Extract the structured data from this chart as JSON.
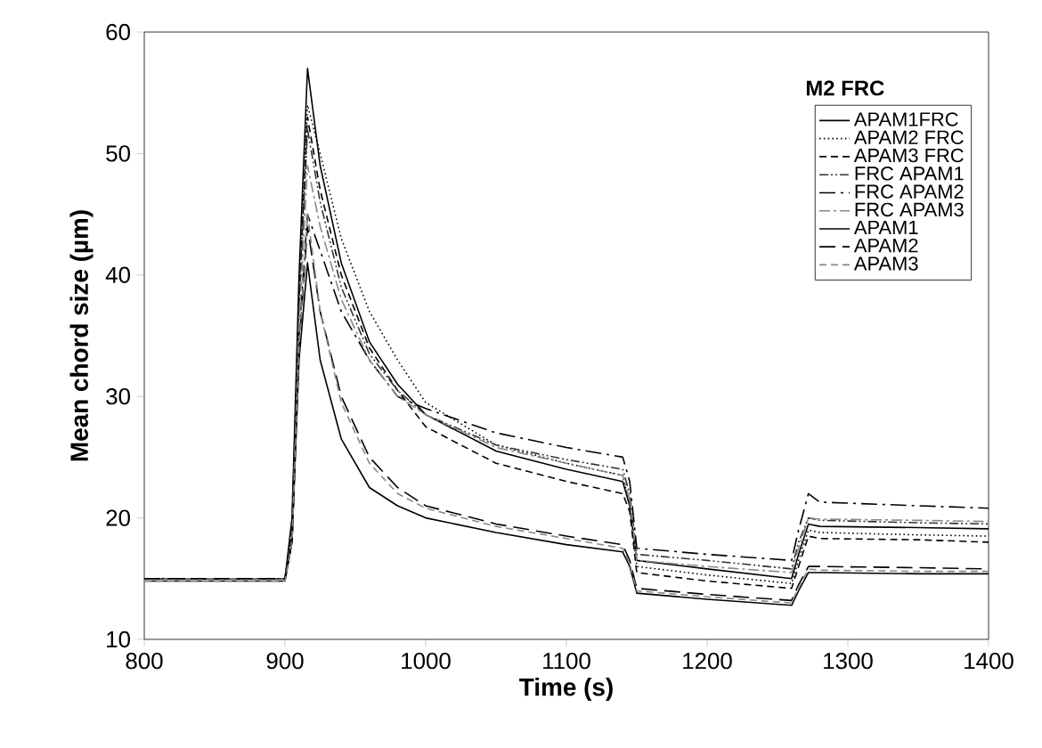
{
  "chart_data": {
    "type": "line",
    "legend_title": "M2 FRC",
    "xlabel": "Time (s)",
    "ylabel": "Mean chord size (µm)",
    "xlim": [
      800,
      1400
    ],
    "xticks": [
      800,
      900,
      1000,
      1100,
      1200,
      1300,
      1400
    ],
    "ylim": [
      10,
      60
    ],
    "yticks": [
      10,
      20,
      30,
      40,
      50,
      60
    ],
    "grid": false,
    "legend": "top right",
    "marker": "none",
    "x": [
      800,
      900,
      905,
      910,
      916,
      925,
      940,
      960,
      980,
      1000,
      1050,
      1100,
      1140,
      1145,
      1150,
      1200,
      1260,
      1265,
      1272,
      1280,
      1350,
      1400
    ],
    "series": [
      {
        "name": "APAM1FRC",
        "color": "#000000",
        "line_style": "solid",
        "values": [
          15,
          15,
          20,
          40,
          57,
          49,
          41,
          34.5,
          31,
          28.5,
          25.5,
          24,
          23,
          21,
          16.5,
          15.8,
          15,
          17,
          19.5,
          19.3,
          19.2,
          19.1
        ]
      },
      {
        "name": "APAM2 FRC",
        "color": "#000000",
        "line_style": "dotted",
        "values": [
          15,
          15,
          19,
          38,
          54,
          50,
          43,
          37,
          33,
          29.5,
          26,
          24.5,
          23.5,
          21,
          16,
          15.3,
          14.6,
          16.5,
          19,
          18.8,
          18.6,
          18.5
        ]
      },
      {
        "name": "APAM3 FRC",
        "color": "#000000",
        "line_style": "dashed",
        "values": [
          15,
          15,
          19,
          38,
          53,
          47,
          40,
          34,
          30.5,
          27.5,
          24.5,
          23,
          22,
          20.5,
          15.5,
          14.8,
          14.2,
          16,
          18.5,
          18.3,
          18.2,
          18
        ]
      },
      {
        "name": "FRC APAM1",
        "color": "#333333",
        "line_style": "dashdotdotted",
        "values": [
          15,
          15,
          19,
          37,
          52,
          46,
          39,
          33.5,
          30.5,
          28.5,
          26,
          24.8,
          24,
          22,
          17,
          16.5,
          15.8,
          18,
          20,
          19.8,
          19.6,
          19.5
        ]
      },
      {
        "name": "FRC APAM2",
        "color": "#000000",
        "line_style": "longdashdot",
        "values": [
          15,
          15,
          18,
          35,
          45,
          42,
          37,
          33,
          30,
          29,
          27,
          25.8,
          25,
          23,
          17.5,
          17,
          16.5,
          19,
          22,
          21.3,
          21,
          20.8
        ]
      },
      {
        "name": "FRC APAM3",
        "color": "#888888",
        "line_style": "dashdotted",
        "values": [
          15,
          15,
          18,
          36,
          49,
          44,
          38,
          33,
          30,
          28.5,
          25.8,
          24.5,
          23.5,
          21.5,
          16.5,
          16,
          15.5,
          17.5,
          20,
          19.9,
          19.8,
          19.7
        ]
      },
      {
        "name": "APAM1",
        "color": "#000000",
        "line_style": "solid",
        "values": [
          14.8,
          14.8,
          18,
          33,
          41,
          33,
          26.5,
          22.5,
          21,
          20,
          18.8,
          17.8,
          17.2,
          16,
          13.8,
          13.3,
          12.8,
          14,
          15.5,
          15.5,
          15.4,
          15.4
        ]
      },
      {
        "name": "APAM2",
        "color": "#000000",
        "line_style": "longdashed",
        "values": [
          15,
          15,
          18,
          34,
          44,
          37,
          30,
          25,
          22.5,
          21,
          19.5,
          18.5,
          17.8,
          16.5,
          14.2,
          13.7,
          13.2,
          14.5,
          16,
          16,
          15.9,
          15.8
        ]
      },
      {
        "name": "APAM3",
        "color": "#888888",
        "line_style": "dashed",
        "values": [
          14.8,
          14.8,
          18,
          34,
          45,
          37,
          29.5,
          24.5,
          22,
          20.8,
          19.3,
          18.3,
          17.5,
          16.2,
          14,
          13.5,
          13,
          14.3,
          15.8,
          15.7,
          15.6,
          15.6
        ]
      }
    ]
  }
}
